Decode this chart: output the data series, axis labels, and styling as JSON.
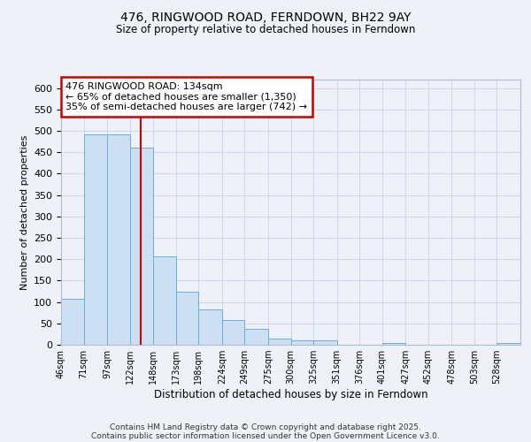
{
  "title": "476, RINGWOOD ROAD, FERNDOWN, BH22 9AY",
  "subtitle": "Size of property relative to detached houses in Ferndown",
  "xlabel": "Distribution of detached houses by size in Ferndown",
  "ylabel": "Number of detached properties",
  "bar_edges": [
    46,
    71,
    97,
    122,
    148,
    173,
    198,
    224,
    249,
    275,
    300,
    325,
    351,
    376,
    401,
    427,
    452,
    478,
    503,
    528,
    554
  ],
  "bar_heights": [
    107,
    492,
    492,
    460,
    207,
    125,
    83,
    57,
    37,
    15,
    10,
    10,
    0,
    0,
    5,
    0,
    0,
    0,
    0,
    5
  ],
  "bar_color": "#cddff3",
  "bar_edge_color": "#6aaed6",
  "ylim": [
    0,
    620
  ],
  "yticks": [
    0,
    50,
    100,
    150,
    200,
    250,
    300,
    350,
    400,
    450,
    500,
    550,
    600
  ],
  "red_line_x": 134,
  "annotation_title": "476 RINGWOOD ROAD: 134sqm",
  "annotation_line1": "← 65% of detached houses are smaller (1,350)",
  "annotation_line2": "35% of semi-detached houses are larger (742) →",
  "grid_color": "#d0d8ea",
  "bg_color": "#eef2f8",
  "footer1": "Contains HM Land Registry data © Crown copyright and database right 2025.",
  "footer2": "Contains public sector information licensed under the Open Government Licence v3.0."
}
